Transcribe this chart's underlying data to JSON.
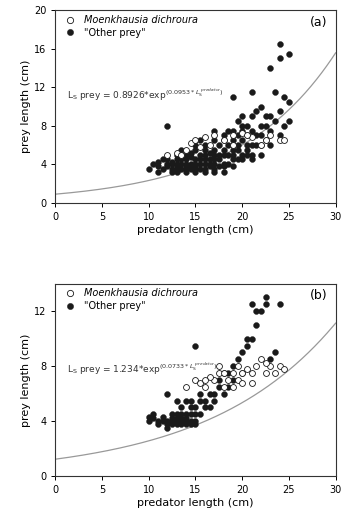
{
  "panel_a": {
    "label": "(a)",
    "coeff_a": 0.8926,
    "coeff_b": 0.0953,
    "eq_text": "L$_\\mathrm{S}$ prey = 0.8926*exp$^{(0.0953*L_\\mathrm{S}^{\\ predator})}$",
    "open_circles": [
      [
        12,
        5.0
      ],
      [
        13,
        5.2
      ],
      [
        14,
        5.5
      ],
      [
        14.5,
        6.2
      ],
      [
        15,
        6.5
      ],
      [
        16,
        6.8
      ],
      [
        17,
        7.0
      ],
      [
        18,
        6.5
      ],
      [
        19,
        7.0
      ],
      [
        20,
        7.2
      ],
      [
        21,
        6.8
      ],
      [
        22,
        6.0
      ],
      [
        23,
        7.0
      ],
      [
        24,
        6.5
      ],
      [
        19,
        6.0
      ],
      [
        15.5,
        5.8
      ],
      [
        16.5,
        6.0
      ],
      [
        20.5,
        7.0
      ],
      [
        13.5,
        5.0
      ],
      [
        22.5,
        6.5
      ],
      [
        24.5,
        6.5
      ]
    ],
    "filled_circles": [
      [
        10,
        3.5
      ],
      [
        10.5,
        4.0
      ],
      [
        11,
        4.2
      ],
      [
        11,
        3.8
      ],
      [
        11.5,
        4.5
      ],
      [
        11.5,
        3.5
      ],
      [
        12,
        4.0
      ],
      [
        12,
        3.8
      ],
      [
        12,
        4.5
      ],
      [
        12,
        8.0
      ],
      [
        12.5,
        3.5
      ],
      [
        12.5,
        4.0
      ],
      [
        12.5,
        4.2
      ],
      [
        13,
        3.5
      ],
      [
        13,
        4.0
      ],
      [
        13,
        3.8
      ],
      [
        13,
        4.5
      ],
      [
        13,
        5.0
      ],
      [
        13.5,
        3.5
      ],
      [
        13.5,
        4.0
      ],
      [
        13.5,
        4.5
      ],
      [
        13.5,
        5.5
      ],
      [
        14,
        3.5
      ],
      [
        14,
        4.0
      ],
      [
        14,
        4.5
      ],
      [
        14,
        3.8
      ],
      [
        14,
        5.0
      ],
      [
        14.5,
        3.5
      ],
      [
        14.5,
        4.0
      ],
      [
        14.5,
        4.8
      ],
      [
        14.5,
        5.2
      ],
      [
        14.5,
        3.8
      ],
      [
        15,
        3.5
      ],
      [
        15,
        4.0
      ],
      [
        15,
        4.5
      ],
      [
        15,
        5.5
      ],
      [
        15,
        6.0
      ],
      [
        15,
        3.8
      ],
      [
        15.5,
        4.0
      ],
      [
        15.5,
        4.5
      ],
      [
        15.5,
        5.0
      ],
      [
        15.5,
        3.5
      ],
      [
        15.5,
        6.5
      ],
      [
        16,
        4.0
      ],
      [
        16,
        4.5
      ],
      [
        16,
        5.0
      ],
      [
        16,
        5.5
      ],
      [
        16,
        3.5
      ],
      [
        16,
        6.0
      ],
      [
        16.5,
        4.0
      ],
      [
        16.5,
        4.5
      ],
      [
        16.5,
        5.2
      ],
      [
        16.5,
        3.8
      ],
      [
        17,
        4.0
      ],
      [
        17,
        4.5
      ],
      [
        17,
        5.0
      ],
      [
        17,
        5.5
      ],
      [
        17,
        6.5
      ],
      [
        17,
        7.5
      ],
      [
        17,
        3.5
      ],
      [
        17.5,
        4.5
      ],
      [
        17.5,
        5.0
      ],
      [
        17.5,
        6.0
      ],
      [
        17.5,
        3.8
      ],
      [
        18,
        4.0
      ],
      [
        18,
        5.0
      ],
      [
        18,
        5.5
      ],
      [
        18,
        6.5
      ],
      [
        18,
        7.0
      ],
      [
        18,
        3.8
      ],
      [
        18.5,
        5.0
      ],
      [
        18.5,
        6.0
      ],
      [
        18.5,
        7.5
      ],
      [
        18.5,
        4.0
      ],
      [
        19,
        5.0
      ],
      [
        19,
        5.5
      ],
      [
        19,
        6.5
      ],
      [
        19,
        7.5
      ],
      [
        19,
        4.5
      ],
      [
        19,
        11.0
      ],
      [
        19.5,
        5.5
      ],
      [
        19.5,
        6.0
      ],
      [
        19.5,
        7.0
      ],
      [
        19.5,
        8.5
      ],
      [
        20,
        5.0
      ],
      [
        20,
        6.5
      ],
      [
        20,
        7.5
      ],
      [
        20,
        8.0
      ],
      [
        20,
        9.0
      ],
      [
        20.5,
        6.0
      ],
      [
        20.5,
        7.0
      ],
      [
        20.5,
        8.0
      ],
      [
        20.5,
        5.5
      ],
      [
        21,
        6.0
      ],
      [
        21,
        7.5
      ],
      [
        21,
        9.0
      ],
      [
        21,
        11.5
      ],
      [
        21,
        5.0
      ],
      [
        21.5,
        7.0
      ],
      [
        21.5,
        9.5
      ],
      [
        21.5,
        6.0
      ],
      [
        22,
        7.0
      ],
      [
        22,
        8.0
      ],
      [
        22,
        10.0
      ],
      [
        22,
        6.0
      ],
      [
        22.5,
        8.0
      ],
      [
        22.5,
        9.0
      ],
      [
        22.5,
        6.5
      ],
      [
        23,
        7.5
      ],
      [
        23,
        9.0
      ],
      [
        23,
        14.0
      ],
      [
        23,
        6.0
      ],
      [
        23.5,
        8.5
      ],
      [
        23.5,
        11.5
      ],
      [
        24,
        7.0
      ],
      [
        24,
        9.5
      ],
      [
        24,
        16.5
      ],
      [
        24,
        15.0
      ],
      [
        24.5,
        8.0
      ],
      [
        24.5,
        11.0
      ],
      [
        25,
        8.5
      ],
      [
        25,
        10.5
      ],
      [
        25,
        15.5
      ],
      [
        11,
        3.2
      ],
      [
        12.5,
        3.2
      ],
      [
        13,
        3.2
      ],
      [
        14,
        3.2
      ],
      [
        15,
        3.2
      ],
      [
        16,
        3.2
      ],
      [
        17,
        3.2
      ],
      [
        18,
        3.2
      ],
      [
        19,
        3.8
      ],
      [
        20,
        4.5
      ],
      [
        21,
        4.5
      ],
      [
        22,
        5.0
      ],
      [
        19.5,
        4.5
      ],
      [
        20.5,
        5.0
      ]
    ]
  },
  "panel_b": {
    "label": "(b)",
    "coeff_a": 1.234,
    "coeff_b": 0.0733,
    "eq_text": "L$_\\mathrm{S}$ prey = 1.234*exp$^{(0.0733*L_\\mathrm{S}^{\\ predator})}$",
    "open_circles": [
      [
        14,
        6.5
      ],
      [
        15,
        7.0
      ],
      [
        16,
        6.5
      ],
      [
        17,
        7.0
      ],
      [
        17.5,
        7.5
      ],
      [
        18,
        7.5
      ],
      [
        18.5,
        7.0
      ],
      [
        19,
        7.5
      ],
      [
        19.5,
        7.0
      ],
      [
        20,
        7.5
      ],
      [
        20.5,
        7.8
      ],
      [
        21,
        7.5
      ],
      [
        21.5,
        8.0
      ],
      [
        22,
        8.5
      ],
      [
        22.5,
        7.5
      ],
      [
        23,
        8.0
      ],
      [
        24,
        8.0
      ],
      [
        15.5,
        6.8
      ],
      [
        16.5,
        7.2
      ],
      [
        18,
        6.5
      ],
      [
        19,
        6.5
      ],
      [
        20,
        6.8
      ],
      [
        16,
        7.0
      ],
      [
        17.5,
        8.0
      ],
      [
        19.5,
        8.0
      ],
      [
        21,
        6.8
      ],
      [
        22.5,
        8.2
      ],
      [
        23.5,
        7.5
      ],
      [
        24.5,
        7.8
      ]
    ],
    "filled_circles": [
      [
        10,
        4.0
      ],
      [
        10,
        4.3
      ],
      [
        10.5,
        4.2
      ],
      [
        11,
        4.0
      ],
      [
        11.5,
        4.0
      ],
      [
        12,
        3.8
      ],
      [
        12,
        4.0
      ],
      [
        12.5,
        4.0
      ],
      [
        12.5,
        4.2
      ],
      [
        12.5,
        3.8
      ],
      [
        13,
        4.0
      ],
      [
        13,
        4.2
      ],
      [
        13,
        3.8
      ],
      [
        13,
        4.5
      ],
      [
        13.5,
        4.0
      ],
      [
        13.5,
        4.2
      ],
      [
        13.5,
        4.5
      ],
      [
        13.5,
        3.8
      ],
      [
        14,
        4.0
      ],
      [
        14,
        3.8
      ],
      [
        14,
        4.5
      ],
      [
        14,
        4.2
      ],
      [
        14.5,
        4.0
      ],
      [
        14.5,
        4.5
      ],
      [
        14.5,
        5.0
      ],
      [
        14.5,
        3.8
      ],
      [
        15,
        4.0
      ],
      [
        15,
        4.5
      ],
      [
        15,
        5.0
      ],
      [
        15,
        3.8
      ],
      [
        15,
        9.5
      ],
      [
        15.5,
        4.5
      ],
      [
        15.5,
        5.5
      ],
      [
        16,
        5.0
      ],
      [
        16,
        5.5
      ],
      [
        16.5,
        5.0
      ],
      [
        17,
        5.5
      ],
      [
        17,
        6.0
      ],
      [
        17.5,
        6.5
      ],
      [
        18,
        6.0
      ],
      [
        18,
        7.5
      ],
      [
        18.5,
        6.5
      ],
      [
        19,
        7.0
      ],
      [
        19,
        8.0
      ],
      [
        20,
        7.5
      ],
      [
        20,
        9.0
      ],
      [
        20.5,
        9.5
      ],
      [
        21,
        10.0
      ],
      [
        21,
        12.5
      ],
      [
        21.5,
        11.0
      ],
      [
        22,
        12.0
      ],
      [
        22.5,
        13.0
      ],
      [
        23,
        8.5
      ],
      [
        24,
        12.5
      ],
      [
        12,
        6.0
      ],
      [
        13,
        5.5
      ],
      [
        14,
        5.5
      ],
      [
        10.5,
        4.5
      ],
      [
        11.5,
        4.3
      ],
      [
        12.5,
        4.5
      ],
      [
        13.5,
        5.0
      ],
      [
        14.5,
        5.5
      ],
      [
        15.5,
        6.0
      ],
      [
        16.5,
        6.0
      ],
      [
        17.5,
        7.0
      ],
      [
        18.5,
        7.5
      ],
      [
        19.5,
        8.5
      ],
      [
        20.5,
        10.0
      ],
      [
        21.5,
        12.0
      ],
      [
        22.5,
        12.5
      ],
      [
        23.5,
        9.0
      ],
      [
        11,
        3.8
      ],
      [
        12,
        3.5
      ]
    ]
  },
  "xlim": [
    0,
    30
  ],
  "ylim_a": [
    0,
    20
  ],
  "ylim_b": [
    0,
    14
  ],
  "xlabel": "predator length (cm)",
  "ylabel": "prey length (cm)",
  "xticks": [
    0,
    5,
    10,
    15,
    20,
    25,
    30
  ],
  "yticks_a": [
    0,
    4,
    8,
    12,
    16,
    20
  ],
  "yticks_b": [
    0,
    4,
    8,
    12
  ],
  "curve_color": "#999999",
  "open_facecolor": "#ffffff",
  "filled_facecolor": "#1a1a1a",
  "edge_color": "#1a1a1a",
  "bg_color": "#ffffff",
  "marker_size": 18,
  "line_width": 0.9,
  "eq_y_a": 0.56,
  "eq_y_b": 0.56
}
